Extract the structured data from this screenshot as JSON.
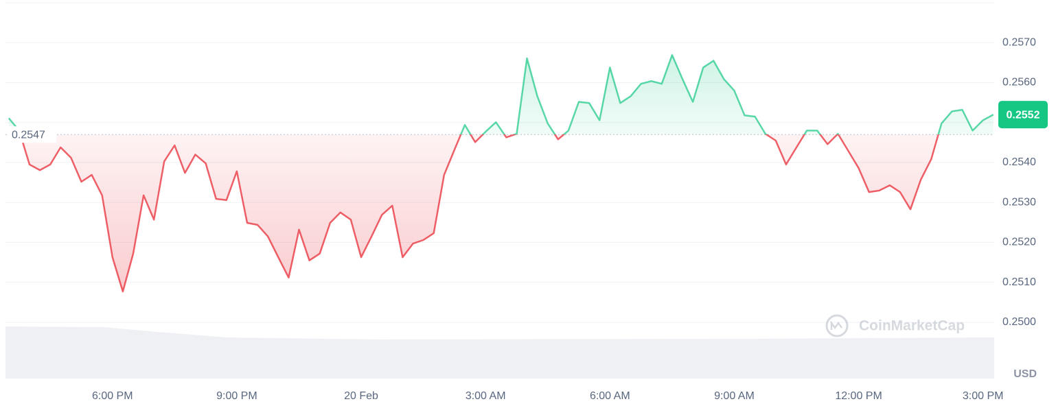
{
  "chart_data": {
    "type": "line",
    "unit_label": "USD",
    "watermark": "CoinMarketCap",
    "baseline": 0.2547,
    "up_color": "#16c784",
    "down_color": "#ea3943",
    "x": [
      15.5,
      15.75,
      16,
      16.25,
      16.5,
      16.75,
      17,
      17.25,
      17.5,
      17.75,
      18,
      18.25,
      18.5,
      18.75,
      19,
      19.25,
      19.5,
      19.75,
      20,
      20.25,
      20.5,
      20.75,
      21,
      21.25,
      21.5,
      21.75,
      22,
      22.25,
      22.5,
      22.75,
      23,
      23.25,
      23.5,
      23.75,
      24,
      24.25,
      24.5,
      24.75,
      25,
      25.25,
      25.5,
      25.75,
      26,
      26.25,
      26.5,
      26.75,
      27,
      27.25,
      27.5,
      27.75,
      28,
      28.25,
      28.5,
      28.75,
      29,
      29.25,
      29.5,
      29.75,
      30,
      30.25,
      30.5,
      30.75,
      31,
      31.25,
      31.5,
      31.75,
      32,
      32.25,
      32.5,
      32.75,
      33,
      33.25,
      33.5,
      33.75,
      34,
      34.25,
      34.5,
      34.75,
      35,
      35.25,
      35.5,
      35.75,
      36,
      36.25,
      36.5,
      36.75,
      37,
      37.25,
      37.5,
      37.75,
      38,
      38.25,
      38.5,
      38.75,
      39,
      39.25
    ],
    "values": [
      0.25511,
      0.2548,
      0.25395,
      0.25381,
      0.25395,
      0.25438,
      0.25412,
      0.25352,
      0.25369,
      0.25318,
      0.25163,
      0.25077,
      0.25172,
      0.25318,
      0.25257,
      0.25403,
      0.25443,
      0.25374,
      0.2542,
      0.25398,
      0.25309,
      0.25306,
      0.25378,
      0.25249,
      0.25244,
      0.25215,
      0.25163,
      0.25112,
      0.25232,
      0.25155,
      0.25172,
      0.25249,
      0.25275,
      0.25257,
      0.25163,
      0.25215,
      0.25269,
      0.25292,
      0.25163,
      0.25197,
      0.25206,
      0.25223,
      0.25369,
      0.25432,
      0.25494,
      0.25451,
      0.25477,
      0.25501,
      0.25463,
      0.25472,
      0.25661,
      0.25566,
      0.25498,
      0.25458,
      0.2548,
      0.25552,
      0.25549,
      0.25506,
      0.25638,
      0.25549,
      0.25566,
      0.25597,
      0.25604,
      0.25597,
      0.25669,
      0.25609,
      0.25552,
      0.25638,
      0.25655,
      0.25609,
      0.2558,
      0.25518,
      0.25515,
      0.25472,
      0.25455,
      0.25395,
      0.25438,
      0.2548,
      0.2548,
      0.25446,
      0.25472,
      0.25429,
      0.25386,
      0.25326,
      0.2533,
      0.25343,
      0.25326,
      0.25283,
      0.25357,
      0.25408,
      0.25498,
      0.25528,
      0.25532,
      0.2548,
      0.25506,
      0.2552
    ],
    "xlim": [
      15.42,
      39.27
    ],
    "xticks": [
      {
        "value": 18,
        "label": "6:00 PM"
      },
      {
        "value": 21,
        "label": "9:00 PM"
      },
      {
        "value": 24,
        "label": "20 Feb"
      },
      {
        "value": 27,
        "label": "3:00 AM"
      },
      {
        "value": 30,
        "label": "6:00 AM"
      },
      {
        "value": 33,
        "label": "9:00 AM"
      },
      {
        "value": 36,
        "label": "12:00 PM"
      },
      {
        "value": 39,
        "label": "3:00 PM"
      }
    ],
    "ylim": [
      0.25,
      0.258
    ],
    "yticks": [
      {
        "value": 0.25,
        "label": "0.2500"
      },
      {
        "value": 0.251,
        "label": "0.2510"
      },
      {
        "value": 0.252,
        "label": "0.2520"
      },
      {
        "value": 0.253,
        "label": "0.2530"
      },
      {
        "value": 0.254,
        "label": "0.2540"
      },
      {
        "value": 0.255,
        "label": "0.2550"
      },
      {
        "value": 0.256,
        "label": "0.2560"
      },
      {
        "value": 0.257,
        "label": "0.2570"
      }
    ],
    "grid": true
  }
}
